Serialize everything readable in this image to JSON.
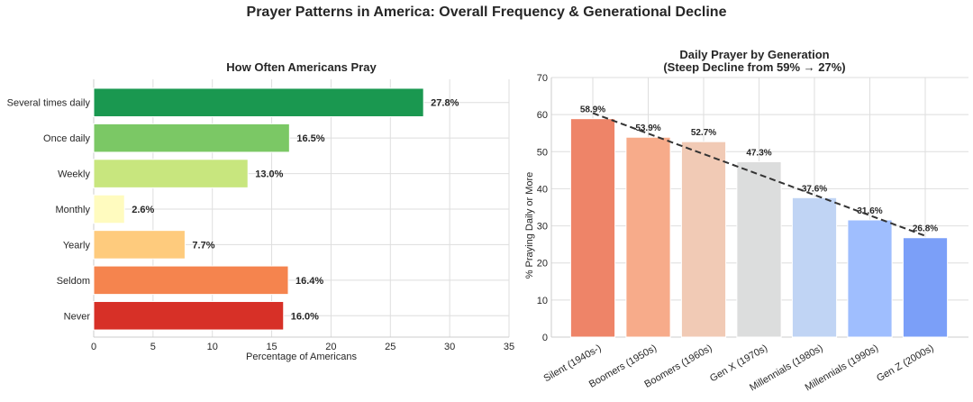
{
  "figure": {
    "suptitle": "Prayer Patterns in America: Overall Frequency & Generational Decline"
  },
  "chart_data": [
    {
      "type": "bar",
      "orientation": "horizontal",
      "title": "How Often Americans Pray",
      "xlabel": "Percentage of Americans",
      "ylabel": "",
      "categories": [
        "Several times daily",
        "Once daily",
        "Weekly",
        "Monthly",
        "Yearly",
        "Seldom",
        "Never"
      ],
      "values": [
        27.8,
        16.5,
        13.0,
        2.6,
        7.7,
        16.4,
        16.0
      ],
      "value_labels": [
        "27.8%",
        "16.5%",
        "13.0%",
        "2.6%",
        "7.7%",
        "16.4%",
        "16.0%"
      ],
      "colors": [
        "#1a9850",
        "#7bc865",
        "#c8e67e",
        "#fffbbf",
        "#fecb7d",
        "#f5844e",
        "#d73027"
      ],
      "xlim": [
        0,
        35
      ],
      "xticks": [
        0,
        5,
        10,
        15,
        20,
        25,
        30,
        35
      ],
      "grid": true
    },
    {
      "type": "bar",
      "title": "Daily Prayer by Generation",
      "subtitle": "(Steep Decline from 59% → 27%)",
      "xlabel": "",
      "ylabel": "% Praying Daily or More",
      "categories": [
        "Silent (1940s-)",
        "Boomers (1950s)",
        "Boomers (1960s)",
        "Gen X (1970s)",
        "Millennials (1980s)",
        "Millennials (1990s)",
        "Gen Z (2000s)"
      ],
      "values": [
        58.9,
        53.9,
        52.7,
        47.3,
        37.6,
        31.6,
        26.8
      ],
      "value_labels": [
        "58.9%",
        "53.9%",
        "52.7%",
        "47.3%",
        "37.6%",
        "31.6%",
        "26.8%"
      ],
      "colors": [
        "#ee8468",
        "#f7ab8a",
        "#f1cab5",
        "#dcdddd",
        "#c0d4f4",
        "#9fbefe",
        "#7b9ff8"
      ],
      "ylim": [
        0,
        70
      ],
      "yticks": [
        0,
        10,
        20,
        30,
        40,
        50,
        60,
        70
      ],
      "trendline": {
        "style": "dashed",
        "color": "#333333",
        "start": 60.4,
        "end": 27.3
      },
      "grid": true
    }
  ]
}
